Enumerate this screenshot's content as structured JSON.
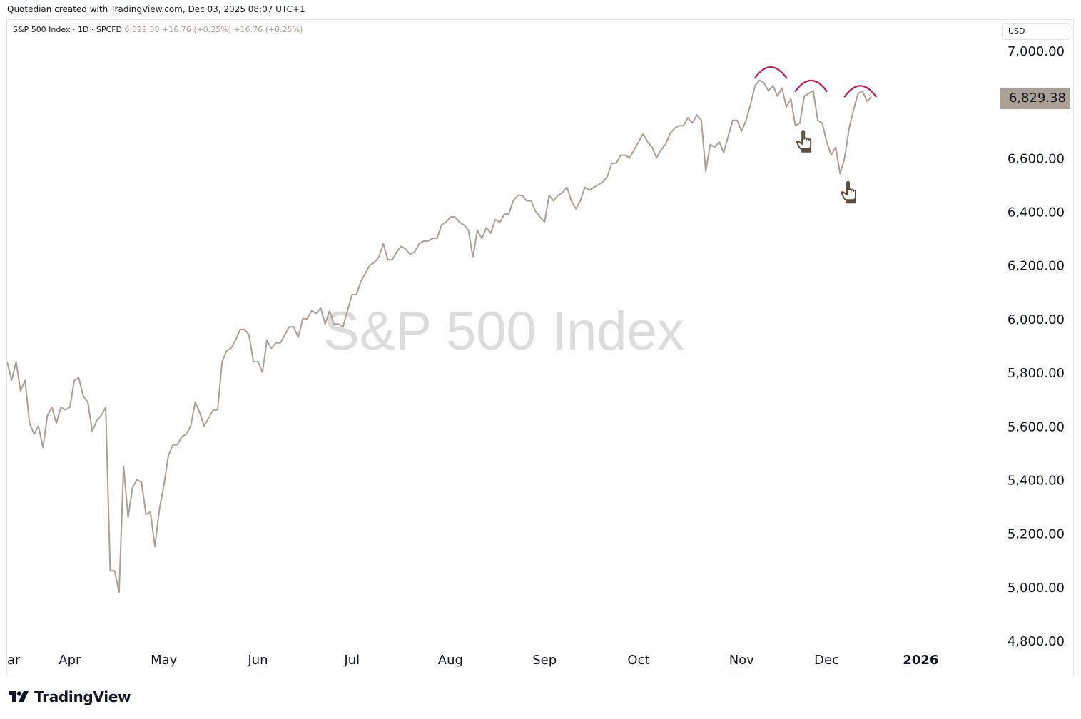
{
  "header": {
    "caption": "Quotedian created with TradingView.com, Dec 03, 2025 08:07 UTC+1"
  },
  "legend": {
    "symbol": "S&P 500 Index · 1D · SPCFD",
    "values": "6,829.38 +16.76 (+0.25%) +16.76 (+0.25%)"
  },
  "toolbar": {
    "currency": "USD"
  },
  "price_label": "6,829.38",
  "footer": {
    "brand": "TradingView"
  },
  "colors": {
    "line": "#a8a096",
    "arcs": "#c2185b",
    "pointer": "#5d4e40",
    "watermark": "#dcdcdc"
  },
  "chart_data": {
    "type": "line",
    "title": "",
    "watermark": "S&P 500 Index",
    "ylabel": "",
    "xlabel": "",
    "ylim": [
      4800,
      7000
    ],
    "y_scale_side": "right",
    "y_ticks": [
      7000,
      6600,
      6400,
      6200,
      6000,
      5800,
      5600,
      5400,
      5200,
      5000,
      4800
    ],
    "y_tick_labels": [
      "7,000.00",
      "6,600.00",
      "6,400.00",
      "6,200.00",
      "6,000.00",
      "5,800.00",
      "5,600.00",
      "5,400.00",
      "5,200.00",
      "5,000.00",
      "4,800.00"
    ],
    "x_ticks": [
      {
        "label": "ar",
        "x": 0
      },
      {
        "label": "Apr",
        "x": 14
      },
      {
        "label": "May",
        "x": 35
      },
      {
        "label": "Jun",
        "x": 56
      },
      {
        "label": "Jul",
        "x": 77
      },
      {
        "label": "Aug",
        "x": 99
      },
      {
        "label": "Sep",
        "x": 120
      },
      {
        "label": "Oct",
        "x": 141
      },
      {
        "label": "Nov",
        "x": 164
      },
      {
        "label": "Dec",
        "x": 183
      },
      {
        "label": "2026",
        "x": 204
      }
    ],
    "x_range": [
      0,
      217
    ],
    "series": [
      {
        "values": [
          5840,
          5770,
          5840,
          5730,
          5770,
          5610,
          5570,
          5600,
          5520,
          5640,
          5670,
          5610,
          5670,
          5660,
          5670,
          5770,
          5780,
          5710,
          5690,
          5580,
          5620,
          5640,
          5670,
          5060,
          5060,
          4980,
          5450,
          5260,
          5370,
          5400,
          5390,
          5270,
          5280,
          5150,
          5290,
          5380,
          5490,
          5530,
          5530,
          5560,
          5570,
          5600,
          5690,
          5650,
          5600,
          5630,
          5660,
          5660,
          5840,
          5880,
          5890,
          5920,
          5960,
          5960,
          5940,
          5840,
          5840,
          5800,
          5920,
          5890,
          5910,
          5910,
          5940,
          5970,
          5970,
          5930,
          6000,
          6000,
          6030,
          6020,
          6040,
          5980,
          6030,
          5980,
          5980,
          5970,
          6030,
          6090,
          6090,
          6140,
          6170,
          6200,
          6210,
          6230,
          6280,
          6220,
          6220,
          6250,
          6270,
          6260,
          6240,
          6250,
          6280,
          6290,
          6290,
          6300,
          6300,
          6350,
          6360,
          6380,
          6380,
          6360,
          6350,
          6330,
          6230,
          6330,
          6300,
          6340,
          6320,
          6370,
          6360,
          6390,
          6390,
          6440,
          6460,
          6460,
          6440,
          6440,
          6400,
          6380,
          6360,
          6460,
          6440,
          6460,
          6470,
          6490,
          6440,
          6410,
          6440,
          6490,
          6480,
          6490,
          6500,
          6510,
          6530,
          6580,
          6580,
          6610,
          6610,
          6600,
          6630,
          6660,
          6690,
          6660,
          6640,
          6600,
          6630,
          6650,
          6690,
          6710,
          6720,
          6720,
          6750,
          6730,
          6760,
          6740,
          6550,
          6650,
          6640,
          6660,
          6620,
          6680,
          6740,
          6740,
          6700,
          6740,
          6800,
          6870,
          6890,
          6880,
          6850,
          6870,
          6830,
          6860,
          6790,
          6820,
          6720,
          6730,
          6830,
          6840,
          6850,
          6740,
          6730,
          6660,
          6610,
          6640,
          6540,
          6600,
          6710,
          6780,
          6840,
          6850,
          6810,
          6829
        ]
      }
    ]
  },
  "annotations": {
    "arcs": [
      {
        "label": "top-1",
        "x_start": 167,
        "x_end": 174,
        "y": 6920
      },
      {
        "label": "top-2",
        "x_start": 176,
        "x_end": 183,
        "y": 6870
      },
      {
        "label": "top-3",
        "x_start": 187,
        "x_end": 194,
        "y": 6850
      }
    ],
    "pointers": [
      {
        "label": "pointer-1",
        "x": 178,
        "y": 6660
      },
      {
        "label": "pointer-2",
        "x": 188,
        "y": 6470
      }
    ]
  }
}
